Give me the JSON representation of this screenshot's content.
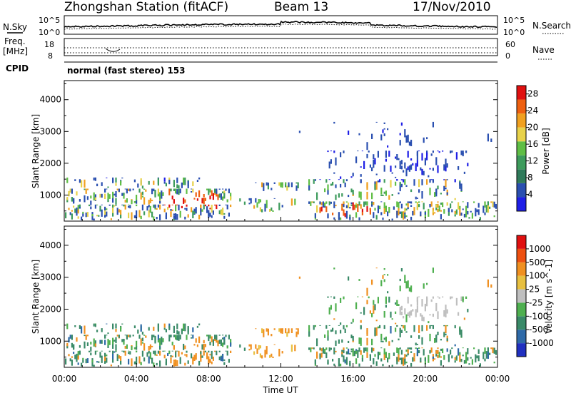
{
  "header": {
    "station": "Zhongshan Station (fitACF)",
    "beam": "Beam 13",
    "date": "17/Nov/2010"
  },
  "status_panel": {
    "nsky_label": "N.Sky",
    "nsearch_label": "N.Search",
    "nsky_ticks": [
      "10^5",
      "10^0"
    ],
    "nsearch_ticks": [
      "10^5",
      "10^0"
    ],
    "freq_label_1": "Freq.",
    "freq_label_2": "[MHz]",
    "freq_ticks": [
      "18",
      "8"
    ],
    "nave_label": "Nave",
    "nave_ticks": [
      "60",
      "0"
    ],
    "cpid_label": "CPID",
    "cpid_value": "normal (fast stereo) 153"
  },
  "chart_data": [
    {
      "type": "heatmap",
      "parameter": "Power",
      "ylabel": "Slant Range [km]",
      "xlabel": "",
      "y_ticks": [
        1000,
        2000,
        3000,
        4000
      ],
      "ylim": [
        180,
        4600
      ],
      "x_ticks": [
        "00:00",
        "04:00",
        "08:00",
        "12:00",
        "16:00",
        "20:00",
        "00:00"
      ],
      "xlim_hours": [
        0,
        24
      ],
      "colorbar": {
        "label": "Power [dB]",
        "ticks": [
          "4",
          "8",
          "12",
          "16",
          "20",
          "24",
          "28"
        ],
        "range": [
          0,
          30
        ],
        "colors": [
          "#1f1fe6",
          "#2a4fb0",
          "#2f7a5a",
          "#3d9b5c",
          "#5fbe45",
          "#e8d24a",
          "#f0a020",
          "#ee6010",
          "#e01010"
        ]
      }
    },
    {
      "type": "heatmap",
      "parameter": "Velocity",
      "ylabel": "Slant Range [km]",
      "xlabel": "Time UT",
      "y_ticks": [
        1000,
        2000,
        3000,
        4000
      ],
      "ylim": [
        180,
        4600
      ],
      "x_ticks": [
        "00:00",
        "04:00",
        "08:00",
        "12:00",
        "16:00",
        "20:00",
        "00:00"
      ],
      "xlim_hours": [
        0,
        24
      ],
      "colorbar": {
        "label": "Velocity [m s^-1]",
        "ticks": [
          "1000",
          "500",
          "100",
          "25",
          "-25",
          "-100",
          "-500",
          "-1000"
        ],
        "colors": [
          "#2030c0",
          "#2e6aa8",
          "#3a8a68",
          "#4fb050",
          "#bfbfbf",
          "#e8c040",
          "#f09020",
          "#ee5010",
          "#e01010"
        ]
      }
    }
  ]
}
